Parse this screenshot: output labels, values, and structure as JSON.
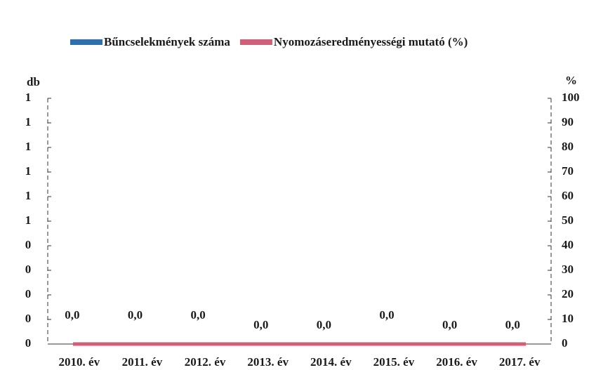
{
  "chart_data": {
    "type": "bar-line",
    "y_axis_label": "db",
    "y2_axis_label": "%",
    "categories": [
      "2010. év",
      "2011. év",
      "2012. év",
      "2013. év",
      "2014. év",
      "2015. év",
      "2016. év",
      "2017. év"
    ],
    "series": [
      {
        "name": "Bűncselekmények száma",
        "type": "bar",
        "color": "#2e6fae",
        "values": [
          0,
          0,
          0,
          0,
          0,
          0,
          0,
          0
        ]
      },
      {
        "name": "Nyomozáseredményességi mutató (%)",
        "type": "line",
        "axis": "y2",
        "color": "#d0607a",
        "values": [
          0,
          0,
          0,
          0,
          0,
          0,
          0,
          0
        ],
        "value_labels": [
          "0,0",
          "0,0",
          "0,0",
          "0,0",
          "0,0",
          "0,0",
          "0,0",
          "0,0"
        ]
      }
    ],
    "ylim": [
      0,
      1
    ],
    "yticks": [
      0,
      {
        "value": 0.1,
        "label": "0"
      },
      {
        "value": 0.2,
        "label": "0"
      },
      {
        "value": 0.3,
        "label": "0"
      },
      {
        "value": 0.4,
        "label": "0"
      },
      {
        "value": 0.5,
        "label": "1"
      },
      {
        "value": 0.6,
        "label": "1"
      },
      {
        "value": 0.7,
        "label": "1"
      },
      {
        "value": 0.8,
        "label": "1"
      },
      {
        "value": 0.9,
        "label": "1"
      },
      1
    ],
    "y2lim": [
      0,
      100
    ],
    "y2ticks": [
      0,
      10,
      20,
      30,
      40,
      50,
      60,
      70,
      80,
      90,
      100
    ]
  }
}
